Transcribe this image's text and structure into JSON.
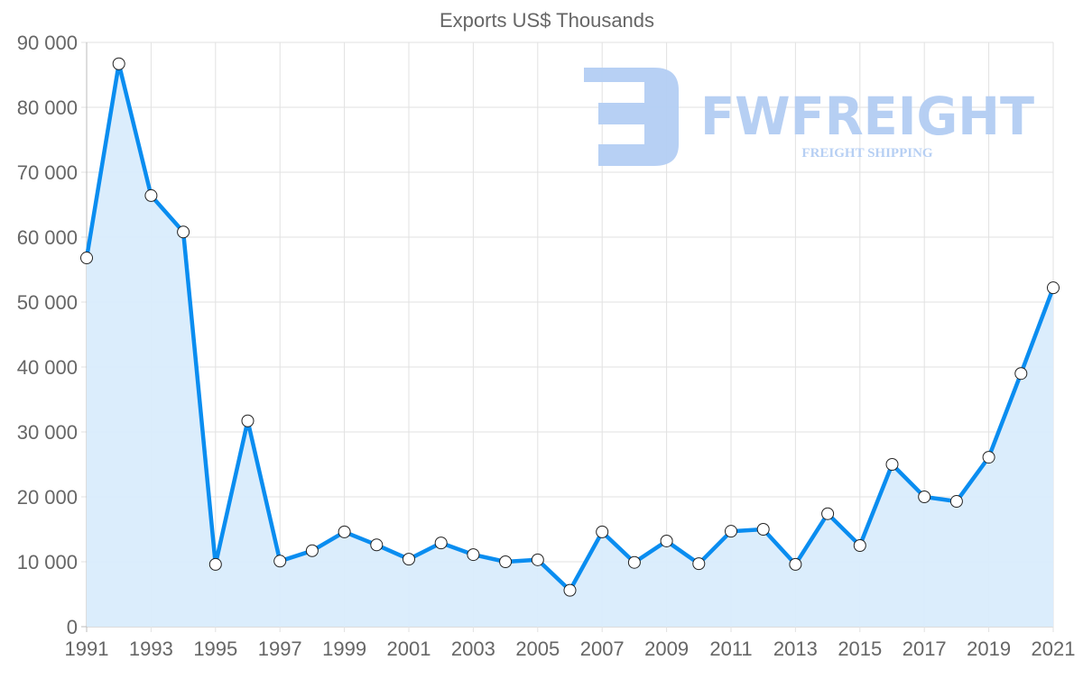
{
  "chart_data": {
    "type": "line",
    "title": "Exports US$ Thousands",
    "xlabel": "",
    "ylabel": "",
    "ylim": [
      0,
      90000
    ],
    "y_ticks": [
      0,
      10000,
      20000,
      30000,
      40000,
      50000,
      60000,
      70000,
      80000,
      90000
    ],
    "y_tick_labels": [
      "0",
      "10 000",
      "20 000",
      "30 000",
      "40 000",
      "50 000",
      "60 000",
      "70 000",
      "80 000",
      "90 000"
    ],
    "x_tick_labels": [
      "1991",
      "1993",
      "1995",
      "1997",
      "1999",
      "2001",
      "2003",
      "2005",
      "2007",
      "2009",
      "2011",
      "2013",
      "2015",
      "2017",
      "2019",
      "2021"
    ],
    "grid": true,
    "fill": true,
    "x": [
      1991,
      1992,
      1993,
      1994,
      1995,
      1996,
      1997,
      1998,
      1999,
      2000,
      2001,
      2002,
      2003,
      2004,
      2005,
      2006,
      2007,
      2008,
      2009,
      2010,
      2011,
      2012,
      2013,
      2014,
      2015,
      2016,
      2017,
      2018,
      2019,
      2020,
      2021
    ],
    "series": [
      {
        "name": "Exports US$ Thousands",
        "color": "#0a8df0",
        "fill_color": "#d9ecfc",
        "values": [
          56800,
          86700,
          66400,
          60800,
          9600,
          31700,
          10100,
          11700,
          14600,
          12600,
          10400,
          12900,
          11100,
          10000,
          10300,
          5600,
          14600,
          9900,
          13200,
          9700,
          14700,
          15000,
          9600,
          17400,
          12500,
          25000,
          20000,
          19300,
          26100,
          39000,
          52200
        ]
      }
    ]
  },
  "watermark": {
    "brand": "FWFREIGHT",
    "tagline": "FREIGHT SHIPPING",
    "color": "#b3cdf3"
  }
}
